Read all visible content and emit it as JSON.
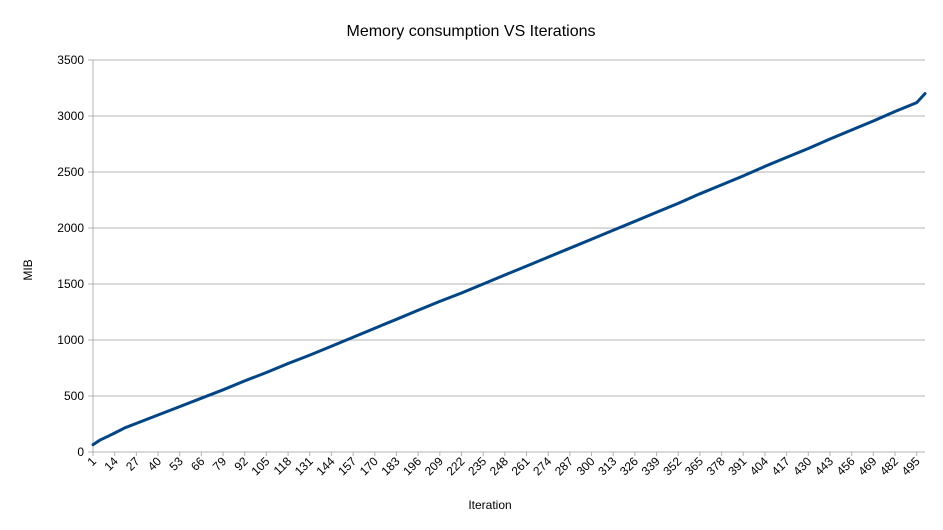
{
  "chart_data": {
    "type": "line",
    "title": "Memory consumption VS Iterations",
    "xlabel": "Iteration",
    "ylabel": "MIB",
    "xlim": [
      1,
      500
    ],
    "ylim": [
      0,
      3500
    ],
    "yticks": [
      0,
      500,
      1000,
      1500,
      2000,
      2500,
      3000,
      3500
    ],
    "xticks": [
      1,
      14,
      27,
      40,
      53,
      66,
      79,
      92,
      105,
      118,
      131,
      144,
      157,
      170,
      183,
      196,
      209,
      222,
      235,
      248,
      261,
      274,
      287,
      300,
      313,
      326,
      339,
      352,
      365,
      378,
      391,
      404,
      417,
      430,
      443,
      456,
      469,
      482,
      495
    ],
    "grid": true,
    "legend": "none",
    "colors": {
      "series": "#004586",
      "grid": "#b3b3b3",
      "axis": "#b3b3b3"
    },
    "series": [
      {
        "x": [
          1,
          5,
          10,
          14,
          20,
          27,
          40,
          53,
          66,
          79,
          92,
          105,
          118,
          131,
          144,
          157,
          170,
          183,
          196,
          209,
          222,
          235,
          248,
          261,
          274,
          287,
          300,
          313,
          326,
          339,
          352,
          365,
          378,
          391,
          404,
          417,
          430,
          443,
          456,
          469,
          482,
          495,
          500
        ],
        "values": [
          65,
          105,
          140,
          170,
          215,
          255,
          330,
          405,
          480,
          555,
          635,
          710,
          790,
          865,
          945,
          1025,
          1105,
          1185,
          1265,
          1345,
          1420,
          1500,
          1580,
          1660,
          1740,
          1820,
          1900,
          1980,
          2060,
          2140,
          2220,
          2305,
          2385,
          2465,
          2550,
          2630,
          2710,
          2795,
          2875,
          2955,
          3040,
          3120,
          3200
        ]
      }
    ]
  }
}
